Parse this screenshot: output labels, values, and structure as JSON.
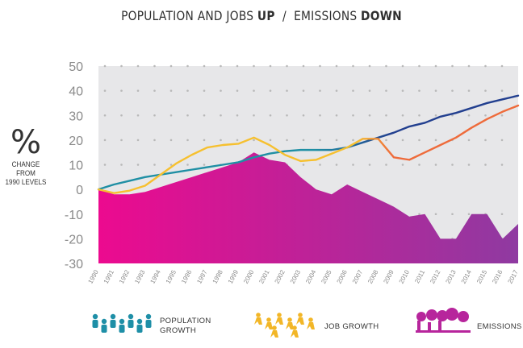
{
  "title": {
    "part1": "POPULATION AND JOBS ",
    "bold1": "UP",
    "sep": "  /  ",
    "part2": "EMISSIONS ",
    "bold2": "DOWN"
  },
  "y_axis": {
    "symbol": "%",
    "line1": "CHANGE FROM",
    "line2": "1990 LEVELS"
  },
  "legend": {
    "population": {
      "line1": "POPULATION",
      "line2": "GROWTH",
      "color": "#1e8fa7"
    },
    "jobs": {
      "line1": "JOB GROWTH",
      "color": "#f2b627"
    },
    "emissions": {
      "line1": "EMISSIONS",
      "color": "#b7259c"
    }
  },
  "chart_data": {
    "type": "line",
    "ylim": [
      -30,
      50
    ],
    "yticks": [
      50,
      40,
      30,
      20,
      10,
      0,
      -10,
      -20,
      -30
    ],
    "grid": true,
    "categories": [
      "1990",
      "1991",
      "1992",
      "1993",
      "1994",
      "1995",
      "1996",
      "1997",
      "1998",
      "1999",
      "2000",
      "2001",
      "2002",
      "2003",
      "2004",
      "2005",
      "2006",
      "2007",
      "2008",
      "2009",
      "2010",
      "2011",
      "2012",
      "2013",
      "2014",
      "2015",
      "2016",
      "2017"
    ],
    "series": [
      {
        "name": "Emissions",
        "type": "area",
        "values": [
          0,
          -2,
          -2,
          -1,
          1,
          3,
          5,
          7,
          9,
          11,
          15,
          12,
          11,
          5,
          0,
          -2,
          2,
          -1,
          -4,
          -7,
          -11,
          -10,
          -20,
          -20,
          -10,
          -10,
          -20,
          -14
        ]
      },
      {
        "name": "Population growth",
        "type": "line",
        "values": [
          0,
          2,
          3.5,
          5,
          6,
          7,
          8,
          9,
          10,
          11,
          13,
          14.5,
          15.5,
          16,
          16,
          16,
          17,
          19,
          21,
          23,
          25.5,
          27,
          29.5,
          31,
          33,
          35,
          36.5,
          38
        ]
      },
      {
        "name": "Job growth",
        "type": "line",
        "values": [
          0,
          -1.5,
          -0.5,
          1.5,
          6,
          10.5,
          14,
          17,
          18,
          18.5,
          21,
          18,
          14,
          11.5,
          12,
          14.5,
          17,
          20.5,
          20.5,
          13,
          12,
          15,
          18,
          21,
          25,
          28.5,
          31.5,
          34
        ]
      }
    ],
    "colors": {
      "background": "#e7e7e9",
      "emissions_start": "#ec0a8f",
      "emissions_end": "#8f3aa1",
      "population": "#223f8f",
      "population_early": "#1f8fa4",
      "jobs_early": "#f6c02f",
      "jobs_late": "#ee6b3b",
      "grid_dot": "#b8b8b8",
      "tick_text": "#8a8a8a"
    }
  }
}
